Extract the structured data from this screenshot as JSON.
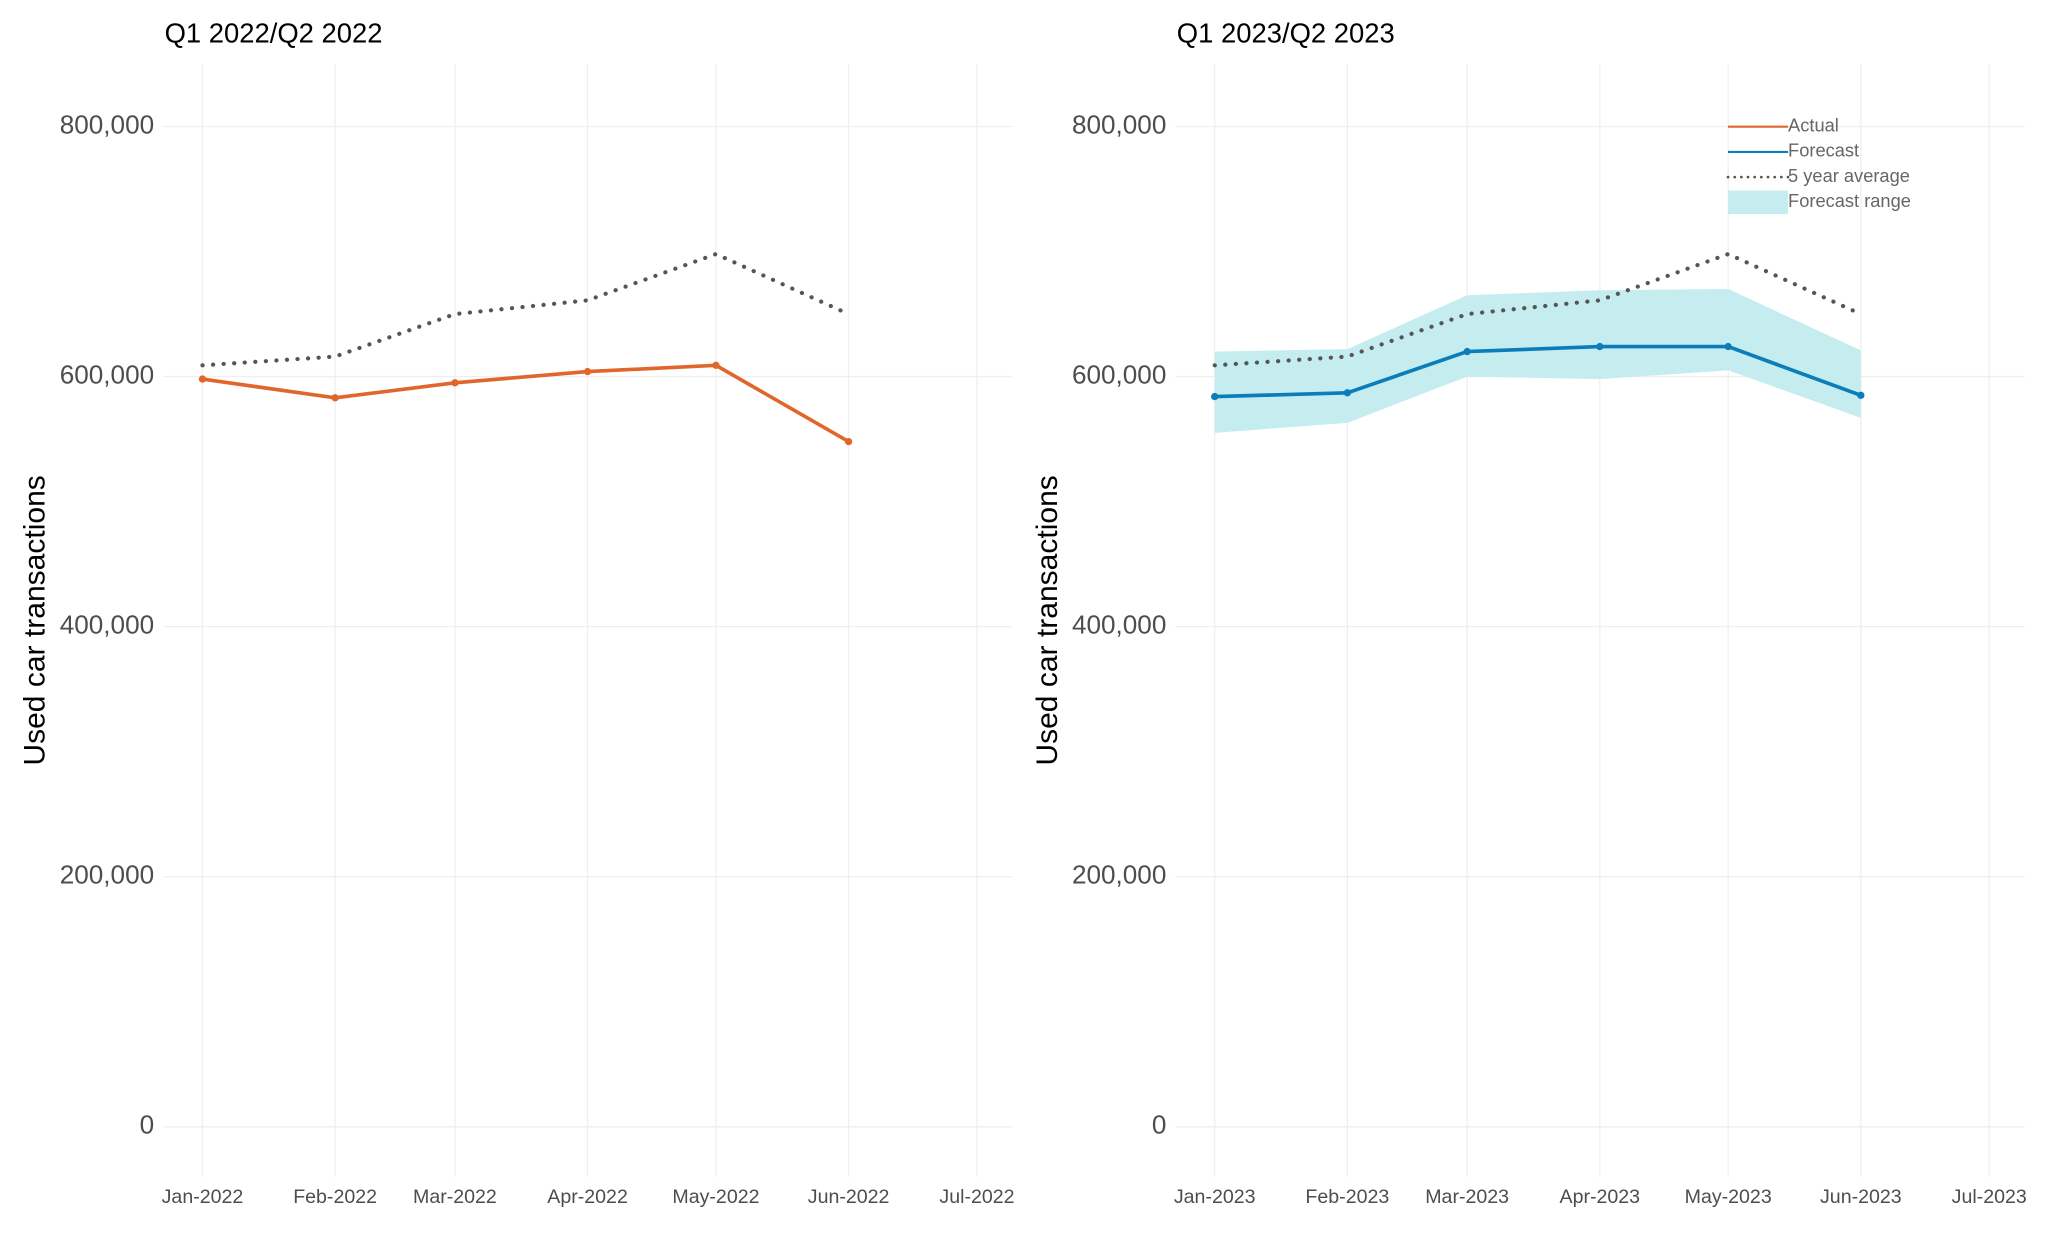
{
  "chart_data": [
    {
      "type": "line",
      "title": "Q1 2022/Q2 2022",
      "y_label": "Used car transactions",
      "x": [
        "2022-01",
        "2022-02",
        "2022-03",
        "2022-04",
        "2022-05",
        "2022-06"
      ],
      "xlim": [
        "2022-01",
        "2022-07"
      ],
      "xticks": [
        {
          "value": "2022-01",
          "label": "Jan-2022"
        },
        {
          "value": "2022-02",
          "label": "Feb-2022"
        },
        {
          "value": "2022-03",
          "label": "Mar-2022"
        },
        {
          "value": "2022-04",
          "label": "Apr-2022"
        },
        {
          "value": "2022-05",
          "label": "May-2022"
        },
        {
          "value": "2022-06",
          "label": "Jun-2022"
        },
        {
          "value": "2022-07",
          "label": "Jul-2022"
        }
      ],
      "ylim": [
        -40000,
        850000
      ],
      "yticks": [
        0,
        {
          "value": 200000,
          "label": "200,000"
        },
        {
          "value": 400000,
          "label": "400,000"
        },
        {
          "value": 600000,
          "label": "600,000"
        },
        {
          "value": 800000,
          "label": "800,000"
        }
      ],
      "grid": true,
      "series": [
        {
          "name": "Actual",
          "color": "#e0662b",
          "style": "solid",
          "markers": true,
          "values": [
            598000,
            583000,
            595000,
            604000,
            609000,
            548000
          ]
        },
        {
          "name": "5 year average",
          "color": "#555555",
          "style": "dotted",
          "markers": false,
          "values": [
            609000,
            616000,
            650000,
            661000,
            698000,
            650000
          ]
        }
      ]
    },
    {
      "type": "line",
      "title": "Q1 2023/Q2 2023",
      "y_label": "Used car transactions",
      "x": [
        "2023-01",
        "2023-02",
        "2023-03",
        "2023-04",
        "2023-05",
        "2023-06"
      ],
      "xlim": [
        "2023-01",
        "2023-07"
      ],
      "xticks": [
        {
          "value": "2023-01",
          "label": "Jan-2023"
        },
        {
          "value": "2023-02",
          "label": "Feb-2023"
        },
        {
          "value": "2023-03",
          "label": "Mar-2023"
        },
        {
          "value": "2023-04",
          "label": "Apr-2023"
        },
        {
          "value": "2023-05",
          "label": "May-2023"
        },
        {
          "value": "2023-06",
          "label": "Jun-2023"
        },
        {
          "value": "2023-07",
          "label": "Jul-2023"
        }
      ],
      "ylim": [
        -40000,
        850000
      ],
      "yticks": [
        0,
        {
          "value": 200000,
          "label": "200,000"
        },
        {
          "value": 400000,
          "label": "400,000"
        },
        {
          "value": 600000,
          "label": "600,000"
        },
        {
          "value": 800000,
          "label": "800,000"
        }
      ],
      "grid": true,
      "legend": "top-right",
      "series": [
        {
          "name": "Forecast range",
          "color": "#c5ecef",
          "style": "band",
          "upper": [
            620000,
            622000,
            665000,
            669000,
            670000,
            621000
          ],
          "lower": [
            555000,
            563000,
            600000,
            598000,
            605000,
            567000
          ]
        },
        {
          "name": "Forecast",
          "color": "#0a7dba",
          "style": "solid",
          "markers": true,
          "values": [
            584000,
            587000,
            620000,
            624000,
            624000,
            585000
          ]
        },
        {
          "name": "5 year average",
          "color": "#555555",
          "style": "dotted",
          "markers": false,
          "values": [
            609000,
            616000,
            650000,
            661000,
            698000,
            650000
          ]
        }
      ]
    }
  ]
}
